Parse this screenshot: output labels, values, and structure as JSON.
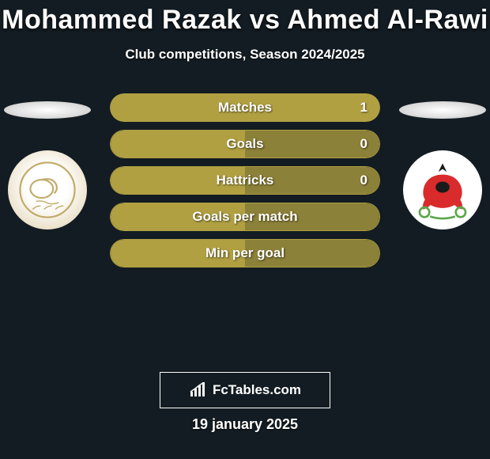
{
  "header": {
    "title": "Mohammed Razak vs Ahmed Al-Rawi",
    "subtitle": "Club competitions, Season 2024/2025"
  },
  "left_team": {
    "name": "al-khor"
  },
  "right_team": {
    "name": "al-rayyan"
  },
  "colors": {
    "background": "#131c22",
    "bar_primary": "#b0a042",
    "bar_secondary": "#8c8138",
    "text": "#ffffff"
  },
  "stats": [
    {
      "label": "Matches",
      "value": "1",
      "left_pct": 100,
      "right_pct": 0,
      "show_value": true
    },
    {
      "label": "Goals",
      "value": "0",
      "left_pct": 50,
      "right_pct": 50,
      "show_value": true
    },
    {
      "label": "Hattricks",
      "value": "0",
      "left_pct": 50,
      "right_pct": 50,
      "show_value": true
    },
    {
      "label": "Goals per match",
      "value": "",
      "left_pct": 50,
      "right_pct": 50,
      "show_value": false
    },
    {
      "label": "Min per goal",
      "value": "",
      "left_pct": 50,
      "right_pct": 50,
      "show_value": false
    }
  ],
  "watermark": {
    "text": "FcTables.com"
  },
  "footer": {
    "date": "19 january 2025"
  }
}
